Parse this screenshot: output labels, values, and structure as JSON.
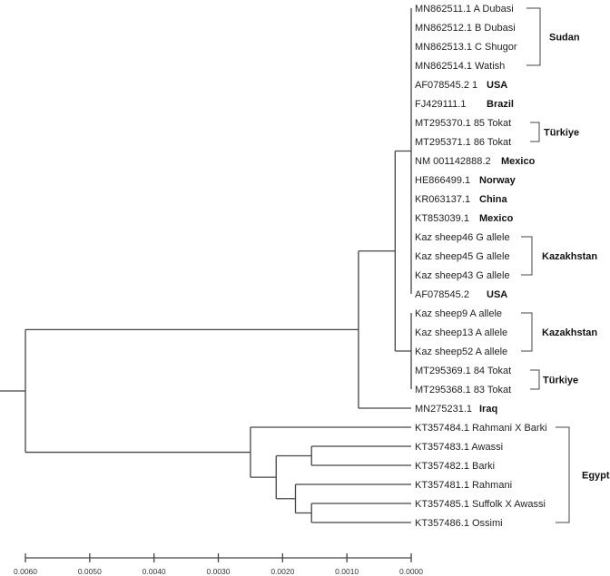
{
  "tree": {
    "height": 0.006,
    "children": [
      {
        "height": 0.00082,
        "children": [
          {
            "height": 0.00025,
            "children": [
              {
                "height": 0,
                "children": [
                  {
                    "leaf": "MN862511.1 A Dubasi"
                  },
                  {
                    "leaf": "MN862512.1 B Dubasi"
                  },
                  {
                    "leaf": "MN862513.1 C Shugor"
                  },
                  {
                    "leaf": "MN862514.1 Watish"
                  },
                  {
                    "leaf": "AF078545.2 1",
                    "country": "USA"
                  },
                  {
                    "leaf": "FJ429111.1",
                    "country": "Brazil"
                  },
                  {
                    "leaf": "MT295370.1 85 Tokat"
                  },
                  {
                    "leaf": "MT295371.1 86 Tokat"
                  },
                  {
                    "leaf": "NM 001142888.2",
                    "country": "Mexico"
                  },
                  {
                    "leaf": "HE866499.1",
                    "country": "Norway"
                  },
                  {
                    "leaf": "KR063137.1",
                    "country": "China"
                  },
                  {
                    "leaf": "KT853039.1",
                    "country": "Mexico"
                  },
                  {
                    "leaf": "Kaz sheep46 G allele"
                  },
                  {
                    "leaf": "Kaz sheep45 G allele"
                  },
                  {
                    "leaf": "Kaz sheep43 G allele"
                  },
                  {
                    "leaf": "AF078545.2",
                    "country": "USA"
                  }
                ]
              },
              {
                "height": 0,
                "children": [
                  {
                    "leaf": "Kaz sheep9 A allele"
                  },
                  {
                    "leaf": "Kaz sheep13 A allele"
                  },
                  {
                    "leaf": "Kaz sheep52 A allele"
                  },
                  {
                    "leaf": "MT295369.1 84 Tokat"
                  },
                  {
                    "leaf": "MT295368.1 83 Tokat"
                  }
                ]
              }
            ]
          },
          {
            "leaf": "MN275231.1",
            "country": "Iraq"
          }
        ]
      },
      {
        "height": 0.0025,
        "children": [
          {
            "leaf": "KT357484.1 Rahmani X Barki"
          },
          {
            "height": 0.0021,
            "children": [
              {
                "height": 0.00155,
                "children": [
                  {
                    "leaf": "KT357483.1 Awassi"
                  },
                  {
                    "leaf": "KT357482.1 Barki"
                  }
                ]
              },
              {
                "height": 0.0018,
                "children": [
                  {
                    "leaf": "KT357481.1 Rahmani"
                  },
                  {
                    "height": 0.00155,
                    "children": [
                      {
                        "leaf": "KT357485.1 Suffolk X Awassi"
                      },
                      {
                        "leaf": "KT357486.1 Ossimi"
                      }
                    ]
                  }
                ]
              }
            ]
          }
        ]
      }
    ]
  },
  "groups": [
    {
      "label": "Sudan",
      "from_leaf": 0,
      "to_leaf": 3
    },
    {
      "label": "Türkiye",
      "from_leaf": 6,
      "to_leaf": 7
    },
    {
      "label": "Kazakhstan",
      "from_leaf": 12,
      "to_leaf": 14
    },
    {
      "label": "Kazakhstan",
      "from_leaf": 16,
      "to_leaf": 18
    },
    {
      "label": "Türkiye",
      "from_leaf": 19,
      "to_leaf": 20
    },
    {
      "label": "Egypt",
      "from_leaf": 22,
      "to_leaf": 27
    }
  ],
  "scale_axis": {
    "ticks": [
      "0.0060",
      "0.0050",
      "0.0040",
      "0.0030",
      "0.0020",
      "0.0010",
      "0.0000"
    ],
    "range": [
      0.006,
      0.0
    ]
  },
  "colors": {
    "lines": "#444444",
    "text": "#222222"
  }
}
